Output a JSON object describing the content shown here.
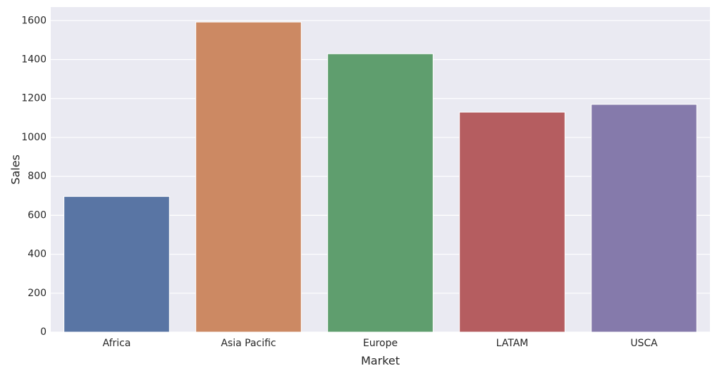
{
  "chart_data": {
    "type": "bar",
    "title": "",
    "xlabel": "Market",
    "ylabel": "Sales",
    "categories": [
      "Africa",
      "Asia Pacific",
      "Europe",
      "LATAM",
      "USCA"
    ],
    "values": [
      697,
      1593,
      1430,
      1130,
      1170
    ],
    "colors": [
      "#5975a4",
      "#cc8963",
      "#5f9e6e",
      "#b55d60",
      "#857aab"
    ],
    "ylim": [
      0,
      1670
    ],
    "yticks": [
      0,
      200,
      400,
      600,
      800,
      1000,
      1200,
      1400,
      1600
    ],
    "ytick_labels": [
      "0",
      "200",
      "400",
      "600",
      "800",
      "1000",
      "1200",
      "1400",
      "1600"
    ],
    "grid": true,
    "background": "#eaeaf2",
    "grid_color": "#ffffff"
  }
}
